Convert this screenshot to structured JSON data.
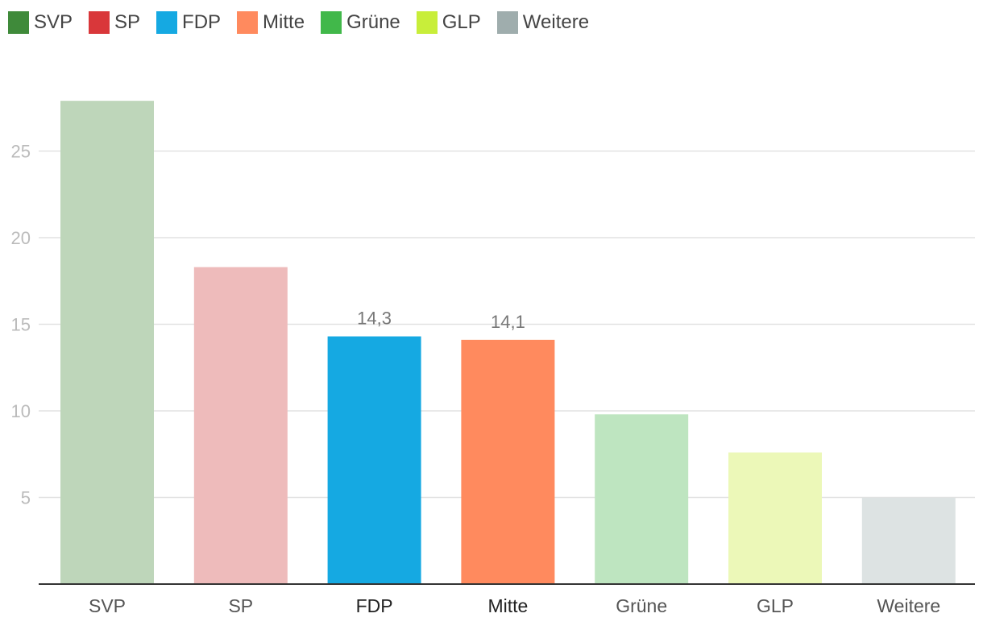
{
  "chart_data": {
    "type": "bar",
    "categories": [
      "SVP",
      "SP",
      "FDP",
      "Mitte",
      "Grüne",
      "GLP",
      "Weitere"
    ],
    "values": [
      27.9,
      18.3,
      14.3,
      14.1,
      9.8,
      7.6,
      5.0
    ],
    "highlighted": [
      false,
      false,
      true,
      true,
      false,
      false,
      false
    ],
    "data_labels": [
      "",
      "",
      "14,3",
      "14,1",
      "",
      "",
      ""
    ],
    "colors": [
      "#3f8a3a",
      "#d9373a",
      "#15a9e2",
      "#ff8a5e",
      "#41b84a",
      "#c8ee3a",
      "#9fadad"
    ],
    "faded_colors": [
      "#bed6ba",
      "#eebbbb",
      "#15a9e2",
      "#ff8a5e",
      "#bee5c0",
      "#ecf8b8",
      "#dde3e3"
    ],
    "y_ticks": [
      5,
      10,
      15,
      20,
      25
    ],
    "ylim": [
      0,
      30
    ],
    "grid": true,
    "legend_position": "top-left",
    "title": "",
    "xlabel": "",
    "ylabel": ""
  }
}
